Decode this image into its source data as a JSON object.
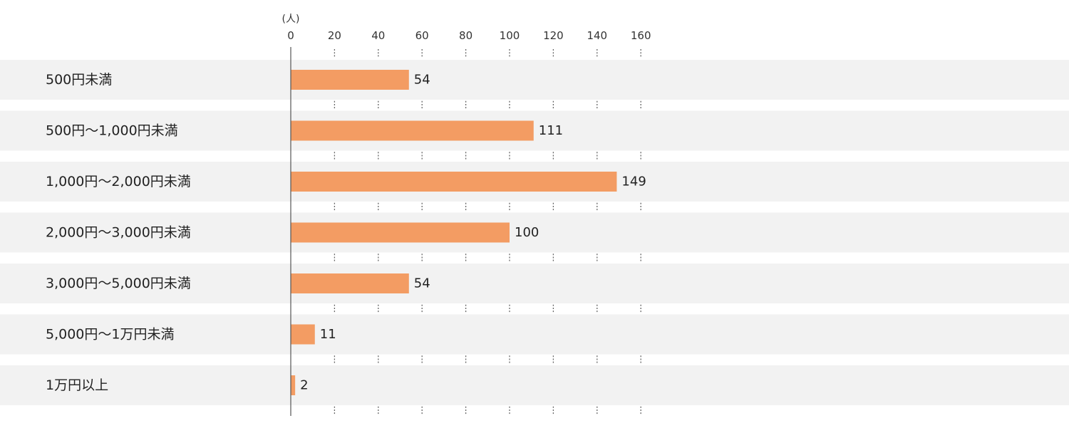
{
  "chart_data": {
    "type": "bar",
    "orientation": "horizontal",
    "unit": "(人)",
    "categories": [
      "500円未満",
      "500円～1,000円未満",
      "1,000円～2,000円未満",
      "2,000円～3,000円未満",
      "3,000円～5,000円未満",
      "5,000円～1万円未満",
      "1万円以上"
    ],
    "values": [
      54,
      111,
      149,
      100,
      54,
      11,
      2
    ],
    "xlim": [
      0,
      160
    ],
    "xticks": [
      0,
      20,
      40,
      60,
      80,
      100,
      120,
      140,
      160
    ],
    "grid": "dotted vertical",
    "colors": {
      "bar": "#f39c63",
      "row_band": "#f2f2f2",
      "axis": "#555555"
    }
  }
}
